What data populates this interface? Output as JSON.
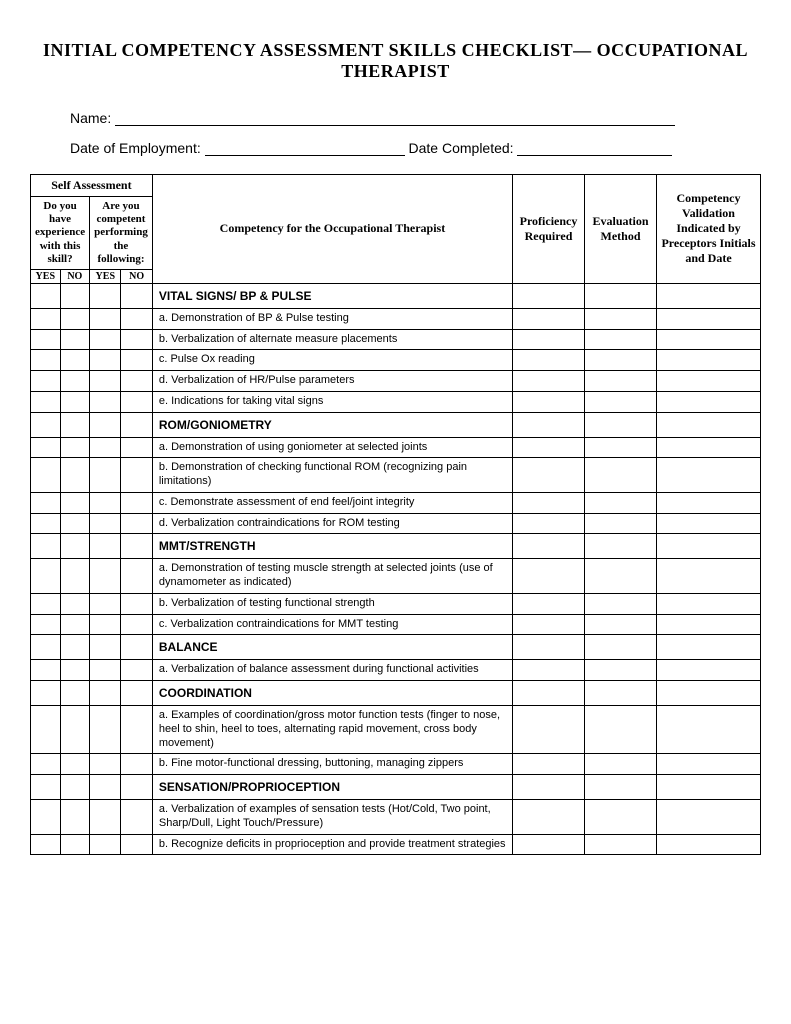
{
  "title": "INITIAL COMPETENCY ASSESSMENT SKILLS CHECKLIST—\nOCCUPATIONAL THERAPIST",
  "fields": {
    "name_label": "Name:",
    "doe_label": "Date of Employment:",
    "dc_label": "Date Completed:"
  },
  "headers": {
    "self_assessment": "Self Assessment",
    "q1": "Do you have experience with this skill?",
    "q2": "Are you competent performing the following:",
    "yes": "YES",
    "no": "NO",
    "competency": "Competency for the Occupational Therapist",
    "proficiency": "Proficiency Required",
    "evaluation": "Evaluation Method",
    "validation": "Competency Validation Indicated by Preceptors Initials and Date"
  },
  "rows": [
    {
      "type": "section",
      "text": "VITAL SIGNS/ BP & PULSE"
    },
    {
      "type": "item",
      "text": "a. Demonstration of BP & Pulse testing"
    },
    {
      "type": "item",
      "text": "b. Verbalization of alternate measure placements"
    },
    {
      "type": "item",
      "text": "c. Pulse Ox reading"
    },
    {
      "type": "item",
      "text": "d. Verbalization of HR/Pulse parameters"
    },
    {
      "type": "item",
      "text": "e. Indications for taking vital signs"
    },
    {
      "type": "section",
      "text": "ROM/GONIOMETRY"
    },
    {
      "type": "item",
      "text": "a. Demonstration of using goniometer at selected joints"
    },
    {
      "type": "item",
      "text": "b. Demonstration of checking functional ROM (recognizing pain limitations)"
    },
    {
      "type": "item",
      "text": "c. Demonstrate assessment of end feel/joint integrity"
    },
    {
      "type": "item",
      "text": "d. Verbalization contraindications for ROM testing"
    },
    {
      "type": "section",
      "text": "MMT/STRENGTH"
    },
    {
      "type": "item",
      "text": "a. Demonstration of testing muscle strength at selected joints (use of dynamometer as indicated)"
    },
    {
      "type": "item",
      "text": "b. Verbalization of testing functional strength"
    },
    {
      "type": "item",
      "text": "c. Verbalization contraindications for MMT testing"
    },
    {
      "type": "section",
      "text": "BALANCE"
    },
    {
      "type": "item",
      "text": "a. Verbalization of balance assessment during functional activities"
    },
    {
      "type": "section",
      "text": "COORDINATION"
    },
    {
      "type": "item",
      "text": "a. Examples of coordination/gross motor function tests (finger to nose, heel to shin, heel to toes, alternating rapid movement, cross body movement)"
    },
    {
      "type": "item",
      "text": "b. Fine motor-functional dressing, buttoning, managing zippers"
    },
    {
      "type": "section",
      "text": "SENSATION/PROPRIOCEPTION"
    },
    {
      "type": "item",
      "text": "a. Verbalization of examples of sensation tests (Hot/Cold, Two point, Sharp/Dull, Light Touch/Pressure)"
    },
    {
      "type": "item",
      "text": "b. Recognize deficits in proprioception and provide treatment strategies"
    }
  ]
}
